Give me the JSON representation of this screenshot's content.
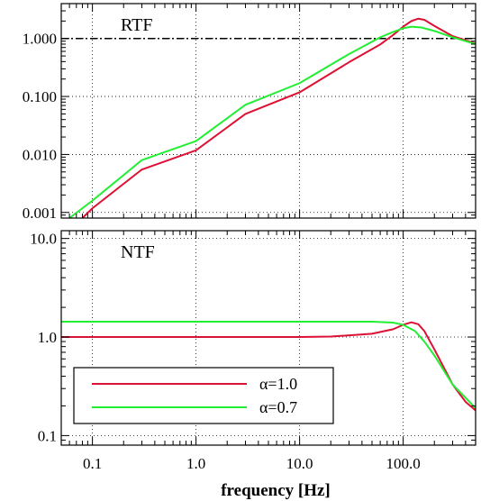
{
  "chart_data": {
    "type": "line",
    "xscale": "log",
    "xlim": [
      0.05,
      500
    ],
    "xlabel": "frequency [Hz]",
    "x_tick_labels": [
      "0.1",
      "1.0",
      "10.0",
      "100.0"
    ],
    "grid": true,
    "legend_position": "lower-left",
    "colors": {
      "alpha_1_0": "#dd1133",
      "alpha_0_7": "#22ee33",
      "reference": "#000000"
    },
    "panels": [
      {
        "label": "RTF",
        "yscale": "log",
        "ylim": [
          0.0008,
          4.0
        ],
        "y_tick_labels": [
          "0.001",
          "0.010",
          "0.100",
          "1.000"
        ],
        "reference_line": {
          "y": 1.0,
          "style": "dash-dot"
        },
        "series": [
          {
            "name": "α=1.0",
            "color": "#dd1133",
            "points": [
              [
                0.08,
                0.0008
              ],
              [
                0.1,
                0.00118
              ],
              [
                0.3,
                0.0055
              ],
              [
                1.0,
                0.0118
              ],
              [
                3.0,
                0.05
              ],
              [
                10.0,
                0.118
              ],
              [
                30.0,
                0.39
              ],
              [
                60.0,
                0.79
              ],
              [
                80.0,
                1.15
              ],
              [
                100.0,
                1.6
              ],
              [
                120.0,
                2.0
              ],
              [
                140.0,
                2.2
              ],
              [
                160.0,
                2.1
              ],
              [
                200.0,
                1.65
              ],
              [
                300.0,
                1.1
              ],
              [
                500.0,
                0.82
              ]
            ]
          },
          {
            "name": "α=0.7",
            "color": "#22ee33",
            "points": [
              [
                0.06,
                0.0008
              ],
              [
                0.1,
                0.0016
              ],
              [
                0.3,
                0.008
              ],
              [
                1.0,
                0.017
              ],
              [
                3.0,
                0.072
              ],
              [
                10.0,
                0.17
              ],
              [
                30.0,
                0.54
              ],
              [
                60.0,
                1.05
              ],
              [
                80.0,
                1.3
              ],
              [
                100.0,
                1.5
              ],
              [
                120.0,
                1.6
              ],
              [
                150.0,
                1.55
              ],
              [
                200.0,
                1.35
              ],
              [
                300.0,
                1.05
              ],
              [
                500.0,
                0.8
              ]
            ]
          }
        ]
      },
      {
        "label": "NTF",
        "yscale": "log",
        "ylim": [
          0.08,
          12.0
        ],
        "y_tick_labels": [
          "0.1",
          "1.0",
          "10.0"
        ],
        "series": [
          {
            "name": "α=1.0",
            "color": "#dd1133",
            "points": [
              [
                0.05,
                1.0
              ],
              [
                10.0,
                1.0
              ],
              [
                20.0,
                1.01
              ],
              [
                50.0,
                1.08
              ],
              [
                80.0,
                1.2
              ],
              [
                100.0,
                1.33
              ],
              [
                120.0,
                1.41
              ],
              [
                140.0,
                1.35
              ],
              [
                160.0,
                1.15
              ],
              [
                200.0,
                0.75
              ],
              [
                300.0,
                0.33
              ],
              [
                400.0,
                0.22
              ],
              [
                500.0,
                0.18
              ]
            ]
          },
          {
            "name": "α=0.7",
            "color": "#22ee33",
            "points": [
              [
                0.05,
                1.43
              ],
              [
                10.0,
                1.43
              ],
              [
                50.0,
                1.43
              ],
              [
                80.0,
                1.4
              ],
              [
                100.0,
                1.33
              ],
              [
                130.0,
                1.15
              ],
              [
                160.0,
                0.9
              ],
              [
                200.0,
                0.65
              ],
              [
                300.0,
                0.33
              ],
              [
                500.0,
                0.19
              ]
            ]
          }
        ]
      }
    ],
    "legend": [
      {
        "label": "α=1.0",
        "color": "#dd1133"
      },
      {
        "label": "α=0.7",
        "color": "#22ee33"
      }
    ]
  }
}
